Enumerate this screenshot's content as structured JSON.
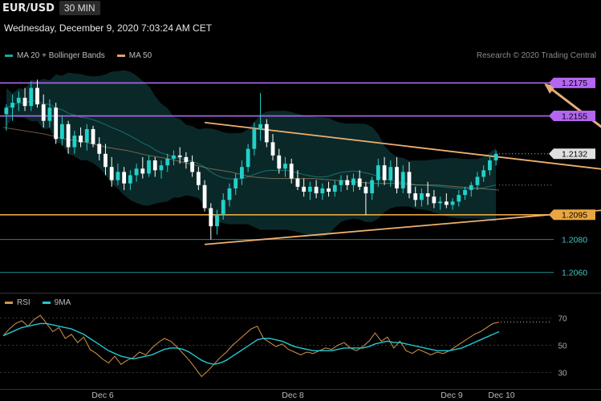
{
  "header": {
    "symbol": "EUR/USD",
    "timeframe": "30 MIN",
    "datetime": "Wednesday, December 9, 2020 7:03:24 AM CET"
  },
  "legend": {
    "main": [
      {
        "label": "MA 20 + Bollinger Bands",
        "color": "#1aa8a0"
      },
      {
        "label": "MA 50",
        "color": "#e0a070"
      }
    ],
    "indicator": [
      {
        "label": "RSI",
        "color": "#d4944c"
      },
      {
        "label": "9MA",
        "color": "#22c8d0"
      }
    ]
  },
  "credit": "Research © 2020 Trading Central",
  "colors": {
    "up": "#22d1c8",
    "down": "#ffffff",
    "resistance": "#b366f0",
    "support": "#e9a640",
    "ma50": "#c7a06a",
    "band_fill": "#0d2f30",
    "teal_line": "#1b8f8c"
  },
  "chart_data": [
    {
      "type": "candlestick",
      "title": "EUR/USD",
      "x_tick_labels": [
        "Dec 6",
        "Dec 8",
        "Dec 9",
        "Dec 10"
      ],
      "ylim": [
        1.2054,
        1.2183
      ],
      "candles_ohlc": [
        [
          1.2156,
          1.2162,
          1.2146,
          1.216
        ],
        [
          1.216,
          1.2168,
          1.2152,
          1.2163
        ],
        [
          1.2163,
          1.217,
          1.2158,
          1.2166
        ],
        [
          1.2166,
          1.2172,
          1.2158,
          1.2161
        ],
        [
          1.2161,
          1.2176,
          1.2158,
          1.2172
        ],
        [
          1.2172,
          1.2177,
          1.216,
          1.2162
        ],
        [
          1.2162,
          1.2168,
          1.2148,
          1.2152
        ],
        [
          1.2152,
          1.2165,
          1.2148,
          1.216
        ],
        [
          1.216,
          1.2163,
          1.2138,
          1.2141
        ],
        [
          1.2141,
          1.2155,
          1.2137,
          1.215
        ],
        [
          1.215,
          1.2152,
          1.2132,
          1.2136
        ],
        [
          1.2136,
          1.2146,
          1.2132,
          1.2143
        ],
        [
          1.2143,
          1.2148,
          1.2136,
          1.2139
        ],
        [
          1.2139,
          1.215,
          1.2134,
          1.2147
        ],
        [
          1.2147,
          1.2149,
          1.2136,
          1.2138
        ],
        [
          1.2138,
          1.2142,
          1.2128,
          1.2132
        ],
        [
          1.2132,
          1.2138,
          1.2119,
          1.2124
        ],
        [
          1.2124,
          1.213,
          1.2112,
          1.2116
        ],
        [
          1.2116,
          1.2126,
          1.2113,
          1.2121
        ],
        [
          1.2121,
          1.2124,
          1.211,
          1.2114
        ],
        [
          1.2114,
          1.2122,
          1.211,
          1.2119
        ],
        [
          1.2119,
          1.2126,
          1.2115,
          1.2123
        ],
        [
          1.2123,
          1.213,
          1.2117,
          1.212
        ],
        [
          1.212,
          1.2131,
          1.2118,
          1.2128
        ],
        [
          1.2128,
          1.213,
          1.2118,
          1.2122
        ],
        [
          1.2122,
          1.2128,
          1.2117,
          1.2125
        ],
        [
          1.2125,
          1.2132,
          1.2121,
          1.2129
        ],
        [
          1.2129,
          1.2134,
          1.2125,
          1.2131
        ],
        [
          1.2131,
          1.2136,
          1.2126,
          1.213
        ],
        [
          1.213,
          1.2133,
          1.2123,
          1.2127
        ],
        [
          1.2127,
          1.2131,
          1.2118,
          1.2121
        ],
        [
          1.2121,
          1.2124,
          1.211,
          1.2113
        ],
        [
          1.2113,
          1.2116,
          1.2097,
          1.2099
        ],
        [
          1.2099,
          1.2102,
          1.208,
          1.2088
        ],
        [
          1.2088,
          1.2098,
          1.2083,
          1.2095
        ],
        [
          1.2095,
          1.2108,
          1.2092,
          1.2104
        ],
        [
          1.2104,
          1.2114,
          1.21,
          1.2111
        ],
        [
          1.2111,
          1.212,
          1.2107,
          1.2117
        ],
        [
          1.2117,
          1.2128,
          1.2113,
          1.2124
        ],
        [
          1.2124,
          1.2138,
          1.2121,
          1.2135
        ],
        [
          1.2135,
          1.2151,
          1.2131,
          1.2147
        ],
        [
          1.2147,
          1.2169,
          1.214,
          1.215
        ],
        [
          1.215,
          1.2153,
          1.2136,
          1.2139
        ],
        [
          1.2139,
          1.2144,
          1.2128,
          1.2131
        ],
        [
          1.2131,
          1.2135,
          1.212,
          1.2123
        ],
        [
          1.2123,
          1.213,
          1.2118,
          1.2126
        ],
        [
          1.2126,
          1.2129,
          1.2114,
          1.2117
        ],
        [
          1.2117,
          1.2122,
          1.211,
          1.2112
        ],
        [
          1.2112,
          1.2117,
          1.2106,
          1.2109
        ],
        [
          1.2109,
          1.2115,
          1.2104,
          1.2112
        ],
        [
          1.2112,
          1.2116,
          1.2105,
          1.2108
        ],
        [
          1.2108,
          1.2114,
          1.2104,
          1.2111
        ],
        [
          1.2111,
          1.2115,
          1.2106,
          1.2109
        ],
        [
          1.2109,
          1.2116,
          1.2106,
          1.2113
        ],
        [
          1.2113,
          1.2119,
          1.2109,
          1.2116
        ],
        [
          1.2116,
          1.2119,
          1.211,
          1.2113
        ],
        [
          1.2113,
          1.212,
          1.2109,
          1.2117
        ],
        [
          1.2117,
          1.2122,
          1.211,
          1.2112
        ],
        [
          1.2112,
          1.2115,
          1.2095,
          1.2108
        ],
        [
          1.2108,
          1.2118,
          1.2104,
          1.2116
        ],
        [
          1.2116,
          1.2129,
          1.2112,
          1.2125
        ],
        [
          1.2125,
          1.213,
          1.2113,
          1.2116
        ],
        [
          1.2116,
          1.2128,
          1.2112,
          1.2124
        ],
        [
          1.2124,
          1.213,
          1.2108,
          1.2111
        ],
        [
          1.2111,
          1.2125,
          1.2108,
          1.2121
        ],
        [
          1.2121,
          1.2127,
          1.2105,
          1.2108
        ],
        [
          1.2108,
          1.2112,
          1.21,
          1.2104
        ],
        [
          1.2104,
          1.2111,
          1.21,
          1.2108
        ],
        [
          1.2108,
          1.2115,
          1.2101,
          1.2106
        ],
        [
          1.2106,
          1.211,
          1.2099,
          1.2102
        ],
        [
          1.2102,
          1.2106,
          1.2098,
          1.2103
        ],
        [
          1.2103,
          1.2108,
          1.2099,
          1.2101
        ],
        [
          1.2101,
          1.2105,
          1.2098,
          1.2103
        ],
        [
          1.2103,
          1.211,
          1.21,
          1.2107
        ],
        [
          1.2107,
          1.2112,
          1.2104,
          1.211
        ],
        [
          1.211,
          1.2115,
          1.2106,
          1.2113
        ],
        [
          1.2113,
          1.2121,
          1.211,
          1.2118
        ],
        [
          1.2118,
          1.2125,
          1.2115,
          1.2122
        ],
        [
          1.2122,
          1.2131,
          1.2119,
          1.2128
        ],
        [
          1.2128,
          1.2134,
          1.2125,
          1.2132
        ]
      ],
      "ma50": [
        1.2148,
        1.2146,
        1.2144,
        1.2141,
        1.2139,
        1.2136,
        1.2134,
        1.2131,
        1.2129,
        1.2126,
        1.2123,
        1.2121,
        1.2118,
        1.2117,
        1.2117,
        1.2117,
        1.2116,
        1.2115,
        1.2114,
        1.2114,
        1.2113,
        1.2113,
        1.2112,
        1.2111,
        1.211
      ],
      "resistance_lines": [
        1.2175,
        1.2155
      ],
      "support_line": 1.2095,
      "secondary_levels": [
        1.208,
        1.206
      ],
      "last_price": 1.2132,
      "price_labels": [
        "1.2175",
        "1.2155",
        "1.2132",
        "1.2095",
        "1.2080",
        "1.2060"
      ],
      "triangle": {
        "upper": [
          [
            32,
            1.2151
          ],
          [
            100,
            1.2121
          ]
        ],
        "lower": [
          [
            32,
            1.2077
          ],
          [
            100,
            1.2099
          ]
        ]
      },
      "target_arrow": {
        "from": [
          101,
          1.2134
        ],
        "to": [
          111,
          1.2175
        ]
      }
    },
    {
      "type": "line",
      "title": "RSI",
      "yticks": [
        30,
        50,
        70
      ],
      "ylim": [
        22,
        78
      ],
      "series": [
        {
          "name": "RSI",
          "values": [
            57,
            62,
            66,
            68,
            64,
            69,
            72,
            66,
            60,
            63,
            55,
            58,
            52,
            56,
            47,
            44,
            40,
            37,
            42,
            36,
            39,
            41,
            45,
            43,
            48,
            52,
            55,
            53,
            49,
            44,
            39,
            33,
            27,
            31,
            36,
            41,
            45,
            50,
            54,
            58,
            62,
            64,
            55,
            52,
            49,
            51,
            47,
            45,
            43,
            45,
            44,
            46,
            48,
            47,
            50,
            52,
            48,
            46,
            49,
            53,
            59,
            53,
            56,
            48,
            53,
            46,
            44,
            47,
            45,
            43,
            45,
            44,
            46,
            49,
            52,
            55,
            58,
            60,
            63,
            66,
            67
          ]
        },
        {
          "name": "9MA",
          "values": [
            57,
            59,
            61,
            63,
            64,
            65,
            66,
            66,
            65,
            64,
            63,
            62,
            60,
            58,
            55,
            52,
            49,
            46,
            44,
            42,
            41,
            40,
            41,
            42,
            43,
            45,
            47,
            48,
            48,
            47,
            45,
            42,
            39,
            37,
            36,
            37,
            39,
            42,
            45,
            48,
            51,
            54,
            55,
            55,
            54,
            53,
            51,
            49,
            48,
            47,
            46,
            46,
            46,
            46,
            47,
            48,
            48,
            48,
            48,
            49,
            51,
            52,
            53,
            52,
            52,
            51,
            50,
            49,
            48,
            47,
            46,
            46,
            46,
            47,
            48,
            50,
            52,
            54,
            56,
            58,
            60
          ]
        }
      ]
    }
  ]
}
